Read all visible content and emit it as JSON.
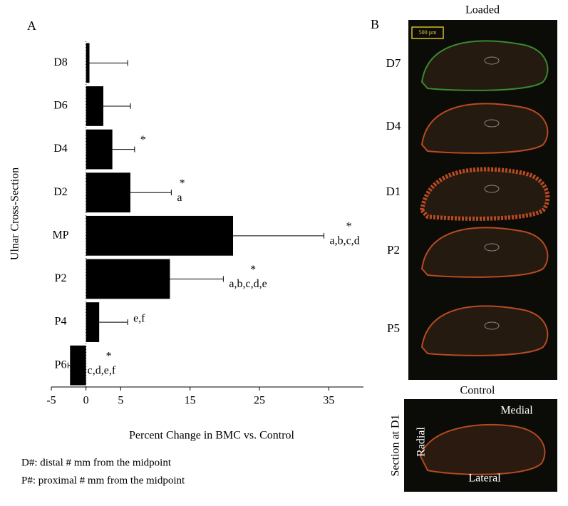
{
  "chart_data": {
    "type": "hbar",
    "panel_label": "A",
    "ylabel": "Ulnar Cross-Section",
    "xlabel": "Percent Change in BMC vs. Control",
    "categories": [
      "D8",
      "D6",
      "D4",
      "D2",
      "MP",
      "P2",
      "P4",
      "P6"
    ],
    "values": [
      0.5,
      2.5,
      3.8,
      6.4,
      21.2,
      12.1,
      1.9,
      -2.3
    ],
    "errors": [
      5.5,
      3.9,
      3.2,
      5.9,
      13.1,
      7.7,
      4.1,
      0.3
    ],
    "stars": [
      null,
      null,
      "*",
      "*",
      "*",
      "*",
      null,
      "*"
    ],
    "letters": [
      null,
      null,
      null,
      "a",
      "a,b,c,d",
      "a,b,c,d,e",
      "e,f",
      "c,d,e,f"
    ],
    "color": "#000000",
    "xlim": [
      -5,
      40
    ],
    "xticks": [
      -5,
      0,
      5,
      15,
      25,
      35
    ],
    "notes": [
      "D#: distal # mm from the midpoint",
      "P#: proximal # mm from the midpoint"
    ]
  },
  "panel_b": {
    "label": "B",
    "loaded_title": "Loaded",
    "scale_bar": "500 µm",
    "sections": [
      "D7",
      "D4",
      "D1",
      "P2",
      "P5"
    ],
    "control_title": "Control",
    "control_side": "Section at D1",
    "medial": "Medial",
    "radial": "Radial",
    "lateral": "Lateral"
  }
}
